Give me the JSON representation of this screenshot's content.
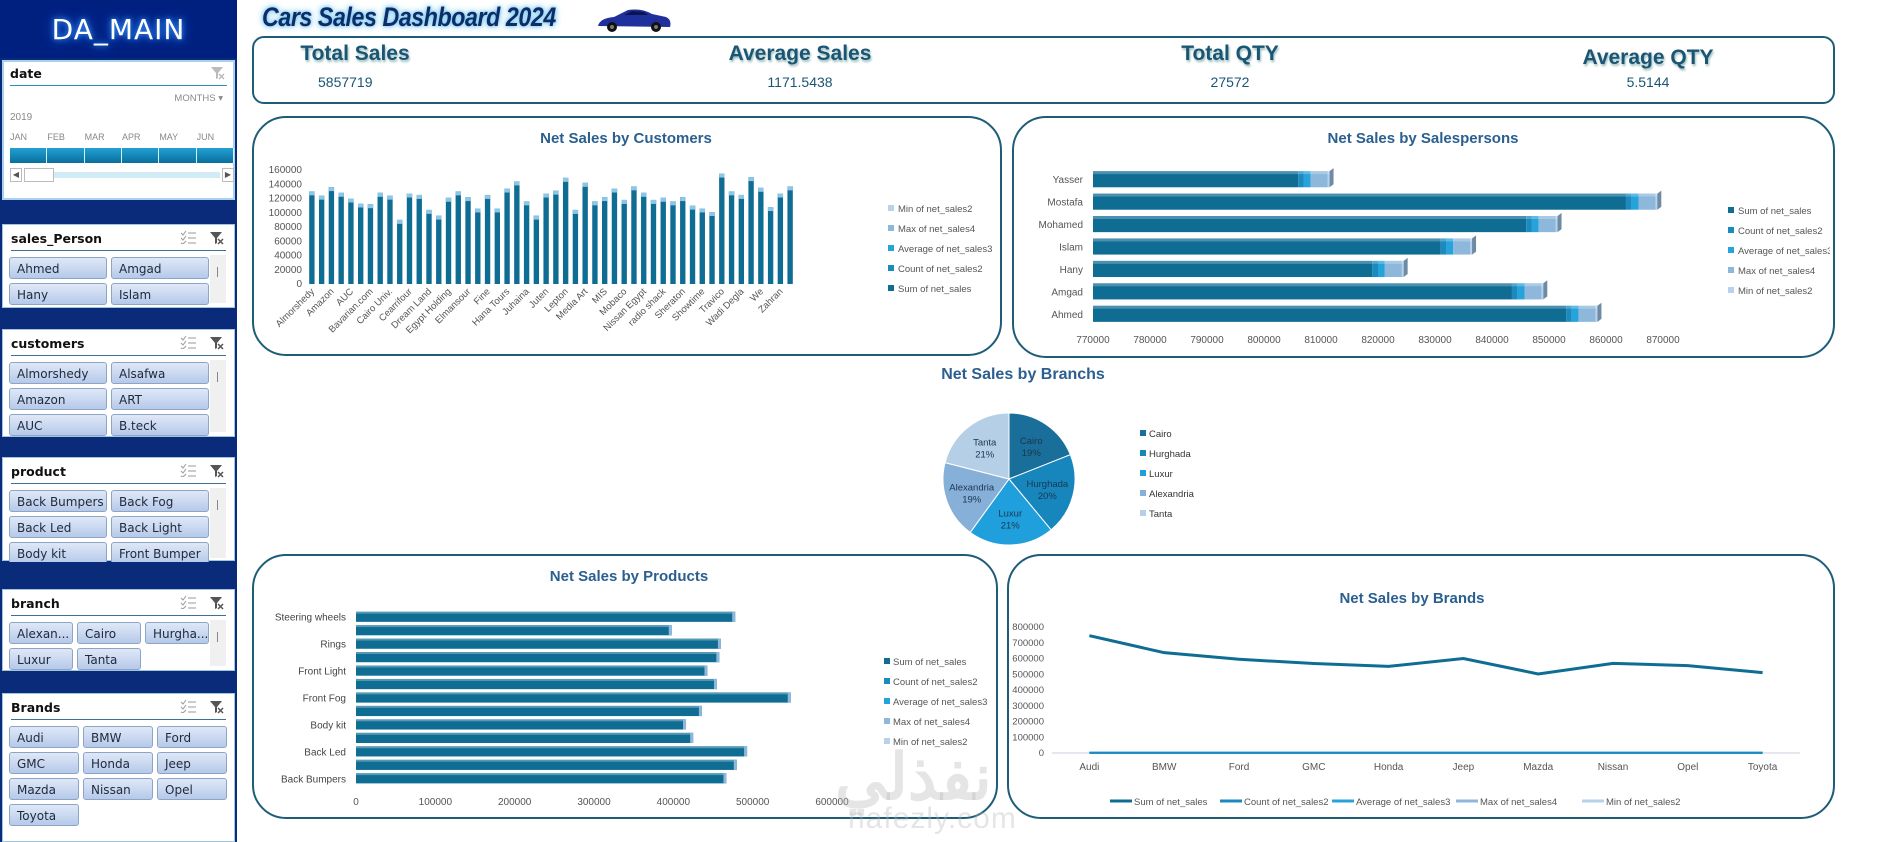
{
  "sidebar": {
    "brand": "DA_MAIN",
    "date_slicer": {
      "title": "date",
      "level": "MONTHS",
      "year": "2019",
      "months": [
        "JAN",
        "FEB",
        "MAR",
        "APR",
        "MAY",
        "JUN"
      ]
    },
    "slicers": [
      {
        "title": "sales_Person",
        "items": [
          "Ahmed",
          "Amgad",
          "Hany",
          "Islam"
        ]
      },
      {
        "title": "customers",
        "items": [
          "Almorshedy",
          "Alsafwa",
          "Amazon",
          "ART",
          "AUC",
          "B.teck"
        ]
      },
      {
        "title": "product",
        "items": [
          "Back Bumpers",
          "Back Fog",
          "Back Led",
          "Back Light",
          "Body kit",
          "Front Bumper"
        ]
      },
      {
        "title": "branch",
        "items": [
          "Alexan...",
          "Cairo",
          "Hurgha...",
          "Luxur",
          "Tanta"
        ]
      },
      {
        "title": "Brands",
        "items": [
          "Audi",
          "BMW",
          "Ford",
          "GMC",
          "Honda",
          "Jeep",
          "Mazda",
          "Nissan",
          "Opel",
          "Toyota"
        ]
      }
    ]
  },
  "header": {
    "title": "Cars  Sales Dashboard 2024"
  },
  "kpis": [
    {
      "label": "Total Sales",
      "value": "5857719"
    },
    {
      "label": "Average Sales",
      "value": "1171.5438"
    },
    {
      "label": "Total QTY",
      "value": "27572"
    },
    {
      "label": "Average QTY",
      "value": "5.5144"
    }
  ],
  "watermark": {
    "arabic": "نفذلي",
    "latin": "nafezly.com"
  },
  "chart_data": [
    {
      "id": "customers",
      "type": "bar",
      "title": "Net Sales by Customers",
      "xlabel": "",
      "ylabel": "",
      "ylim": [
        0,
        160000
      ],
      "yticks": [
        0,
        20000,
        40000,
        60000,
        80000,
        100000,
        120000,
        140000,
        160000
      ],
      "tick_labels": [
        "Almorshedy",
        "Amazon",
        "AUC",
        "Bavarian.com",
        "Cairo Univ.",
        "Cearrifour",
        "Dream Land",
        "Egypt Holding",
        "Elmansour",
        "Fine",
        "Hana Tours",
        "Juhaina",
        "Juten",
        "Lepton",
        "Media Art",
        "MIS",
        "Mobaco",
        "Nissan Egypt",
        "radio shack",
        "Sheraton",
        "Showtime",
        "Travico",
        "Wadi Degla",
        "We",
        "Zahran"
      ],
      "values": [
        130000,
        124000,
        136000,
        128000,
        120000,
        113000,
        112000,
        128000,
        124000,
        90000,
        127000,
        125000,
        104000,
        96000,
        121000,
        130000,
        122000,
        106000,
        125000,
        106000,
        134000,
        144000,
        116000,
        96000,
        127000,
        131000,
        149000,
        104000,
        142000,
        116000,
        122000,
        134000,
        118000,
        137000,
        128000,
        118000,
        121000,
        116000,
        122000,
        110000,
        106000,
        101000,
        155000,
        130000,
        125000,
        150000,
        135000,
        108000,
        127000,
        137000
      ],
      "legend": [
        "Min of net_sales2",
        "Max of net_sales4",
        "Average of net_sales3",
        "Count of net_sales2",
        "Sum of net_sales"
      ],
      "legend_colors": [
        "#b7d2ea",
        "#8db8dc",
        "#27a3dc",
        "#1a8abf",
        "#0f6d94"
      ],
      "legend_position": "right"
    },
    {
      "id": "salespersons",
      "type": "bar",
      "orientation": "horizontal",
      "title": "Net Sales by Salespersons",
      "categories": [
        "Yasser",
        "Mostafa",
        "Mohamed",
        "Islam",
        "Hany",
        "Amgad",
        "Ahmed"
      ],
      "series": [
        {
          "name": "Sum of net_sales",
          "values": [
            806000,
            863500,
            846000,
            831000,
            819000,
            843500,
            853000
          ]
        },
        {
          "name": "Count of net_sales2",
          "values": [
            1000,
            1000,
            1000,
            1000,
            1000,
            1000,
            1000
          ]
        },
        {
          "name": "Average of net_sales3",
          "values": [
            1200,
            1200,
            1200,
            1200,
            1200,
            1200,
            1200
          ]
        },
        {
          "name": "Max of net_sales4",
          "values": [
            3000,
            3000,
            3000,
            3000,
            3000,
            3000,
            3000
          ]
        },
        {
          "name": "Min of net_sales2",
          "values": [
            300,
            300,
            300,
            300,
            300,
            300,
            300
          ]
        }
      ],
      "xlim": [
        770000,
        870000
      ],
      "xticks": [
        770000,
        780000,
        790000,
        800000,
        810000,
        820000,
        830000,
        840000,
        850000,
        860000,
        870000
      ],
      "legend_colors": [
        "#0f6d94",
        "#1a8abf",
        "#27a3dc",
        "#8db8dc",
        "#b7d2ea"
      ],
      "legend_position": "right"
    },
    {
      "id": "branches",
      "type": "pie",
      "title": "Net Sales by Branchs",
      "labels": [
        "Cairo",
        "Hurghada",
        "Luxur",
        "Alexandria",
        "Tanta"
      ],
      "values": [
        19,
        20,
        21,
        19,
        21
      ],
      "data_labels": [
        "19%",
        "20%",
        "21%",
        "19%",
        "21%"
      ],
      "colors": [
        "#1a6e9a",
        "#1786bd",
        "#1fa0dc",
        "#86b0d8",
        "#b5cfe6"
      ],
      "legend_position": "right"
    },
    {
      "id": "products",
      "type": "bar",
      "orientation": "horizontal",
      "title": "Net Sales by Products",
      "categories": [
        "Steering wheels",
        "",
        "Rings",
        "",
        "Front Light",
        "",
        "Front Fog",
        "",
        "Body kit",
        "",
        "Back Led",
        "",
        "Back Bumpers"
      ],
      "values": [
        478000,
        398000,
        460000,
        458000,
        443000,
        455000,
        548000,
        436000,
        416000,
        425000,
        493000,
        480000,
        467000
      ],
      "xlim": [
        0,
        600000
      ],
      "xticks": [
        0,
        100000,
        200000,
        300000,
        400000,
        500000,
        600000
      ],
      "legend": [
        "Sum of net_sales",
        "Count of net_sales2",
        "Average of net_sales3",
        "Max of net_sales4",
        "Min of net_sales2"
      ],
      "legend_colors": [
        "#0f6d94",
        "#1a8abf",
        "#27a3dc",
        "#8db8dc",
        "#b7d2ea"
      ],
      "legend_position": "right"
    },
    {
      "id": "brands",
      "type": "line",
      "title": "Net Sales by Brands",
      "categories": [
        "Audi",
        "BMW",
        "Ford",
        "GMC",
        "Honda",
        "Jeep",
        "Mazda",
        "Nissan",
        "Opel",
        "Toyota"
      ],
      "series": [
        {
          "name": "Sum of net_sales",
          "values": [
            745000,
            637000,
            595000,
            568000,
            550000,
            600000,
            502000,
            569000,
            555000,
            510000
          ]
        },
        {
          "name": "Count of net_sales2",
          "values": [
            1000,
            1000,
            1000,
            1000,
            1000,
            1000,
            1000,
            1000,
            1000,
            1000
          ]
        },
        {
          "name": "Average of net_sales3",
          "values": [
            1200,
            1200,
            1200,
            1200,
            1200,
            1200,
            1200,
            1200,
            1200,
            1200
          ]
        },
        {
          "name": "Max of net_sales4",
          "values": [
            3000,
            3000,
            3000,
            3000,
            3000,
            3000,
            3000,
            3000,
            3000,
            3000
          ]
        },
        {
          "name": "Min of net_sales2",
          "values": [
            300,
            300,
            300,
            300,
            300,
            300,
            300,
            300,
            300,
            300
          ]
        }
      ],
      "ylim": [
        0,
        800000
      ],
      "yticks": [
        0,
        100000,
        200000,
        300000,
        400000,
        500000,
        600000,
        700000,
        800000
      ],
      "legend_colors": [
        "#0f6d94",
        "#1a8abf",
        "#27a3dc",
        "#8db8dc",
        "#b7d2ea"
      ],
      "legend_position": "bottom"
    }
  ]
}
